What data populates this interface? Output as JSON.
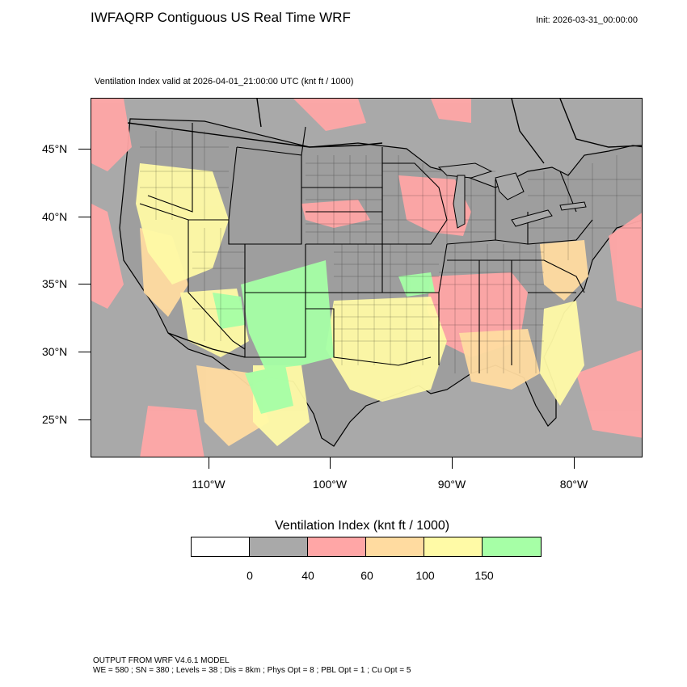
{
  "header": {
    "title": "IWFAQRP Contiguous US Real Time WRF",
    "init": "Init: 2026-03-31_00:00:00",
    "subtitle": "Ventilation Index valid at 2026-04-01_21:00:00 UTC   (knt ft / 1000)"
  },
  "map": {
    "lat_labels": [
      "45°N",
      "40°N",
      "35°N",
      "30°N",
      "25°N"
    ],
    "lon_labels": [
      "110°W",
      "100°W",
      "90°W",
      "80°W"
    ],
    "colors": {
      "ocean": "#a9a9a9",
      "land_gray": "#9a9a9a",
      "pink": "#ffa6a6",
      "orange": "#ffdba0",
      "yellow": "#fffaa6",
      "green": "#a6ffa6",
      "outline": "#000000"
    }
  },
  "legend": {
    "title": "Ventilation Index  (knt ft / 1000)",
    "colors": [
      "#ffffff",
      "#a9a9a9",
      "#ffa6a6",
      "#ffdba0",
      "#fffaa6",
      "#a6ffa6"
    ],
    "ticks": [
      "0",
      "40",
      "60",
      "100",
      "150"
    ]
  },
  "footer": {
    "line1": "OUTPUT FROM WRF V4.6.1 MODEL",
    "line2": "WE = 580 ; SN = 380 ; Levels = 38 ; Dis = 8km ; Phys Opt = 8 ; PBL Opt = 1 ; Cu Opt = 5"
  }
}
